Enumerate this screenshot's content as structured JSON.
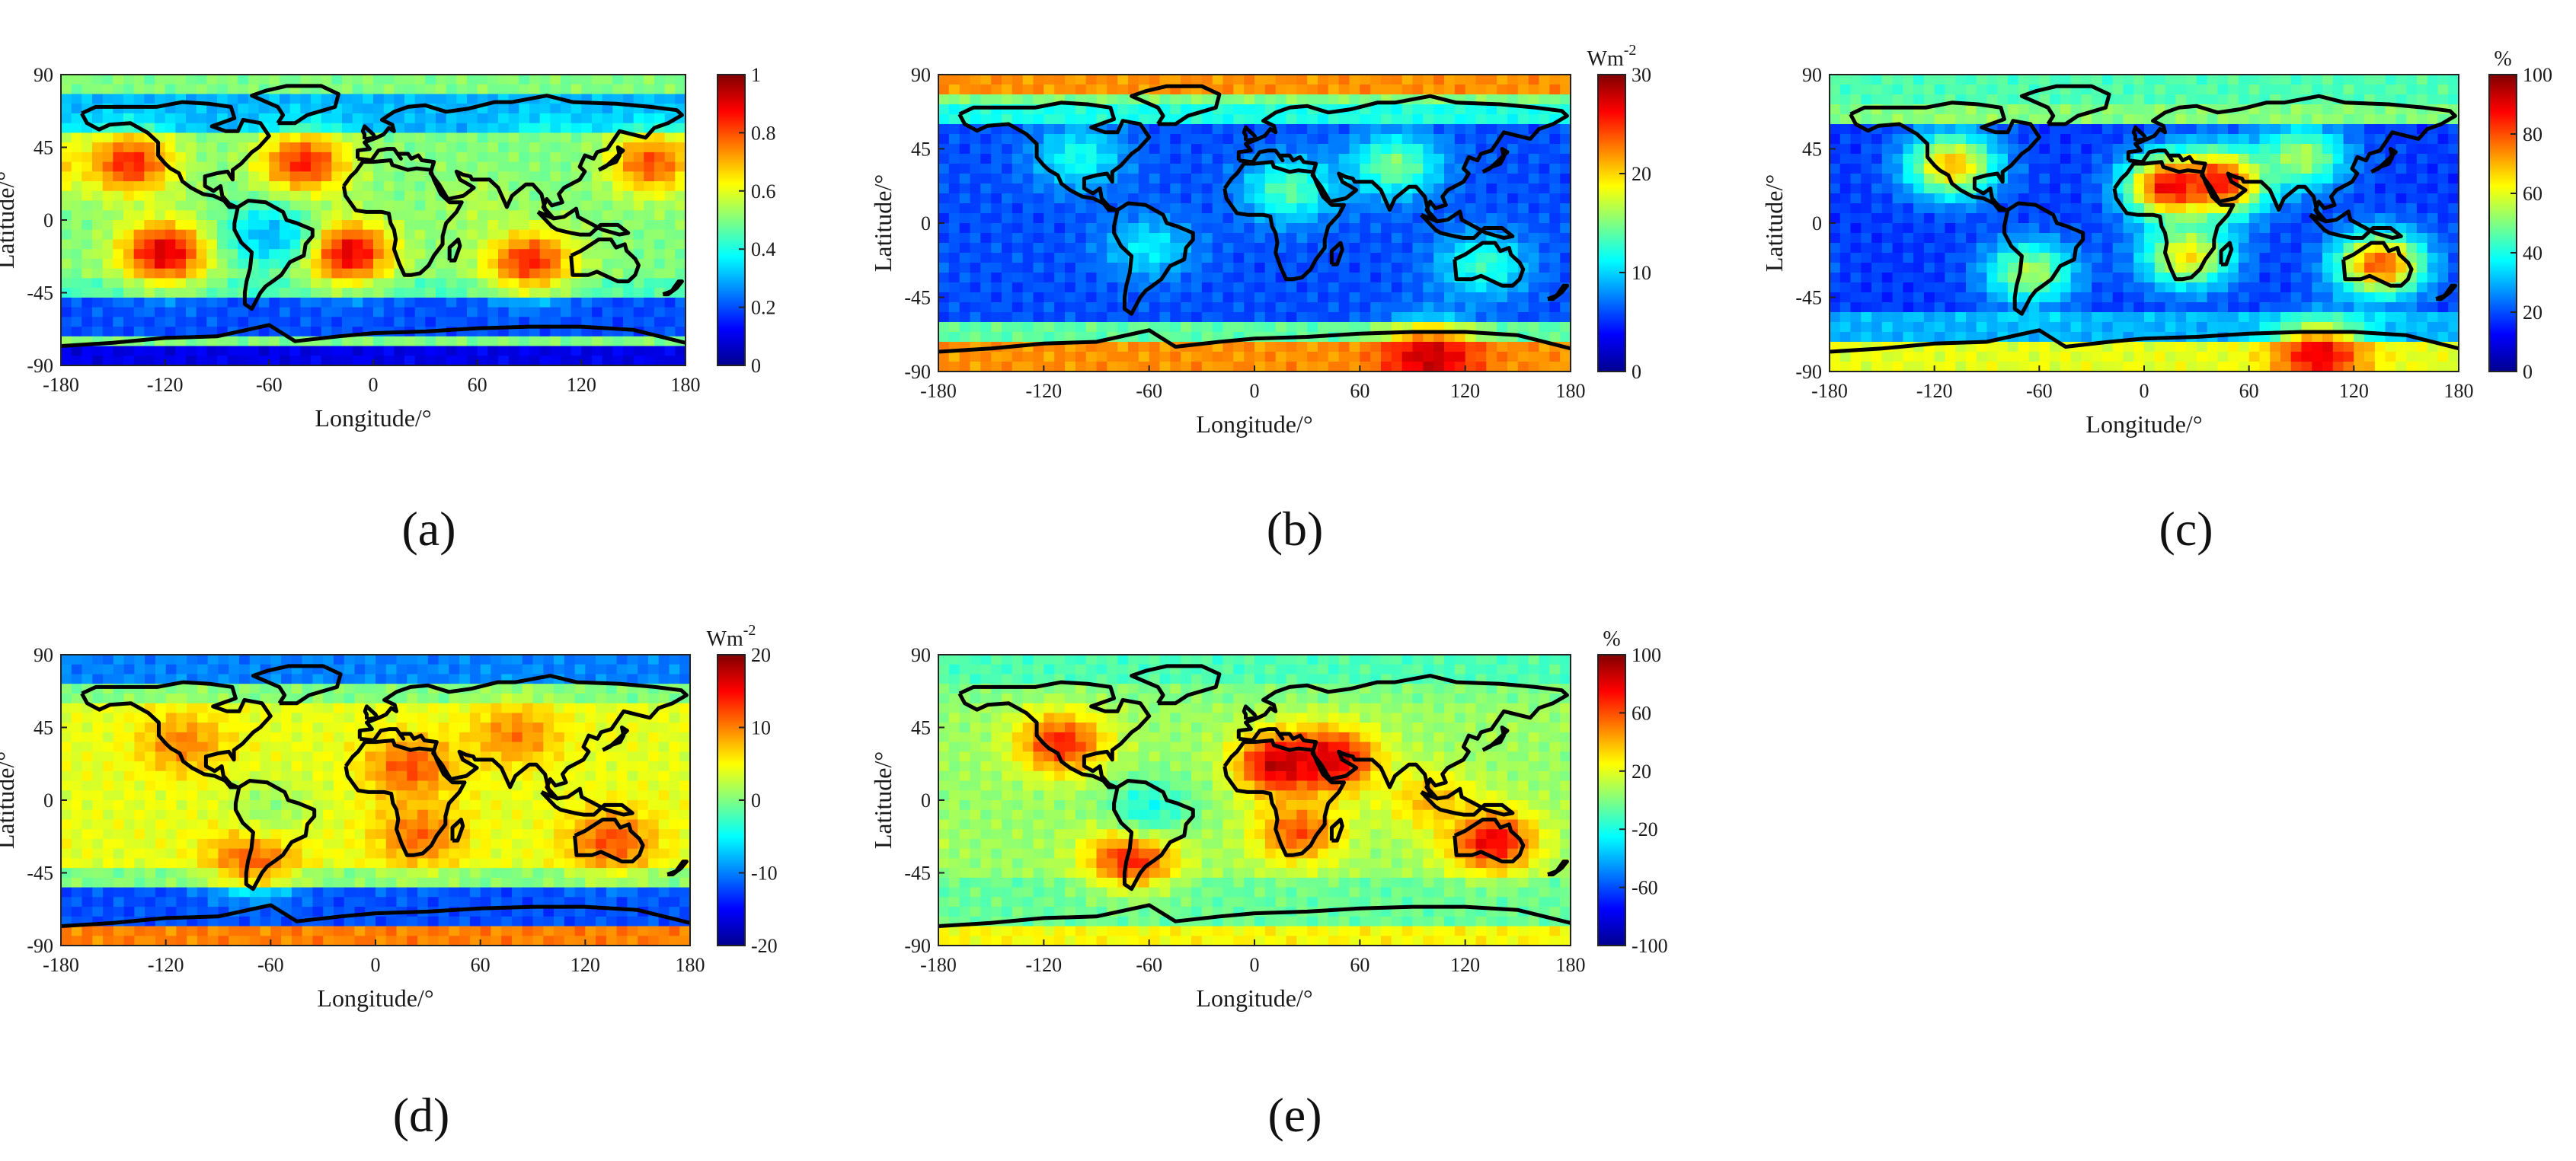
{
  "figure": {
    "caption": ""
  },
  "palette": {
    "jet": [
      "#00008f",
      "#0000ff",
      "#0080ff",
      "#00ffff",
      "#80ff80",
      "#ffff00",
      "#ff8000",
      "#ff0000",
      "#800000"
    ]
  },
  "chart_data": [
    {
      "type": "heatmap",
      "panel_label": "(a)",
      "title": "",
      "xlabel": "Longitude/°",
      "ylabel": "Latitude/°",
      "xlim": [
        -180,
        180
      ],
      "ylim": [
        -90,
        90
      ],
      "xticks": [
        -180,
        -120,
        -60,
        0,
        60,
        120,
        180
      ],
      "yticks": [
        -90,
        -45,
        0,
        45,
        90
      ],
      "colorbar": {
        "min": 0,
        "max": 1,
        "ticks": [
          0,
          0.2,
          0.4,
          0.6,
          0.8,
          1
        ],
        "tick_labels": [
          "0",
          "0.2",
          "0.4",
          "0.6",
          "0.8",
          "1"
        ],
        "unit": ""
      },
      "features": [
        {
          "kind": "band",
          "lat": [
            -90,
            -75
          ],
          "value": 0.1
        },
        {
          "kind": "band",
          "lat": [
            -70,
            -50
          ],
          "value": 0.2
        },
        {
          "kind": "band",
          "lat": [
            -50,
            -35
          ],
          "value": 0.45
        },
        {
          "kind": "band",
          "lat": [
            55,
            80
          ],
          "value": 0.3
        },
        {
          "kind": "blob",
          "lon": -120,
          "lat": -20,
          "value": 0.92
        },
        {
          "kind": "blob",
          "lon": -15,
          "lat": -20,
          "value": 0.92
        },
        {
          "kind": "blob",
          "lon": 90,
          "lat": -25,
          "value": 0.85
        },
        {
          "kind": "blob",
          "lon": -40,
          "lat": 35,
          "value": 0.85
        },
        {
          "kind": "blob",
          "lon": -140,
          "lat": 35,
          "value": 0.85
        },
        {
          "kind": "blob",
          "lon": 160,
          "lat": 35,
          "value": 0.8
        },
        {
          "kind": "blob",
          "lon": 60,
          "lat": 10,
          "value": 0.55
        },
        {
          "kind": "blob",
          "lon": -60,
          "lat": -10,
          "value": 0.3
        },
        {
          "kind": "blob",
          "lon": 100,
          "lat": 40,
          "value": 0.5
        }
      ]
    },
    {
      "type": "heatmap",
      "panel_label": "(b)",
      "title": "",
      "xlabel": "Longitude/°",
      "ylabel": "Latitude/°",
      "xlim": [
        -180,
        180
      ],
      "ylim": [
        -90,
        90
      ],
      "xticks": [
        -180,
        -120,
        -60,
        0,
        60,
        120,
        180
      ],
      "yticks": [
        -90,
        -45,
        0,
        45,
        90
      ],
      "colorbar": {
        "min": 0,
        "max": 30,
        "ticks": [
          0,
          10,
          20,
          30
        ],
        "tick_labels": [
          "0",
          "10",
          "20",
          "30"
        ],
        "unit": "Wm-2"
      },
      "features": [
        {
          "kind": "band",
          "lat": [
            -90,
            -72
          ],
          "value": 22
        },
        {
          "kind": "band",
          "lat": [
            -72,
            -60
          ],
          "value": 14
        },
        {
          "kind": "band",
          "lat": [
            -60,
            60
          ],
          "value": 6
        },
        {
          "kind": "band",
          "lat": [
            60,
            75
          ],
          "value": 12
        },
        {
          "kind": "band",
          "lat": [
            78,
            90
          ],
          "value": 22
        },
        {
          "kind": "blob",
          "lon": 100,
          "lat": -82,
          "value": 28
        },
        {
          "kind": "blob",
          "lon": 20,
          "lat": 20,
          "value": 14
        },
        {
          "kind": "blob",
          "lon": 80,
          "lat": 35,
          "value": 15
        },
        {
          "kind": "blob",
          "lon": -100,
          "lat": 40,
          "value": 12
        },
        {
          "kind": "blob",
          "lon": 130,
          "lat": -25,
          "value": 13
        },
        {
          "kind": "blob",
          "lon": -60,
          "lat": -15,
          "value": 11
        }
      ]
    },
    {
      "type": "heatmap",
      "panel_label": "(c)",
      "title": "",
      "xlabel": "Longitude/°",
      "ylabel": "Latitude/°",
      "xlim": [
        -180,
        180
      ],
      "ylim": [
        -90,
        90
      ],
      "xticks": [
        -180,
        -120,
        -60,
        0,
        60,
        120,
        180
      ],
      "yticks": [
        -90,
        -45,
        0,
        45,
        90
      ],
      "colorbar": {
        "min": 0,
        "max": 100,
        "ticks": [
          0,
          20,
          40,
          60,
          80,
          100
        ],
        "tick_labels": [
          "0",
          "20",
          "40",
          "60",
          "80",
          "100"
        ],
        "unit": "%"
      },
      "features": [
        {
          "kind": "band",
          "lat": [
            -90,
            -72
          ],
          "value": 60
        },
        {
          "kind": "band",
          "lat": [
            -72,
            -55
          ],
          "value": 30
        },
        {
          "kind": "band",
          "lat": [
            -55,
            60
          ],
          "value": 18
        },
        {
          "kind": "band",
          "lat": [
            75,
            90
          ],
          "value": 45
        },
        {
          "kind": "blob",
          "lon": 100,
          "lat": -80,
          "value": 90
        },
        {
          "kind": "blob",
          "lon": 15,
          "lat": 22,
          "value": 90
        },
        {
          "kind": "blob",
          "lon": 45,
          "lat": 25,
          "value": 88
        },
        {
          "kind": "blob",
          "lon": 135,
          "lat": -25,
          "value": 80
        },
        {
          "kind": "blob",
          "lon": -110,
          "lat": 35,
          "value": 70
        },
        {
          "kind": "blob",
          "lon": 25,
          "lat": -20,
          "value": 65
        },
        {
          "kind": "blob",
          "lon": -65,
          "lat": -30,
          "value": 55
        },
        {
          "kind": "blob",
          "lon": 90,
          "lat": 40,
          "value": 55
        }
      ]
    },
    {
      "type": "heatmap",
      "panel_label": "(d)",
      "title": "",
      "xlabel": "Longitude/°",
      "ylabel": "Latitude/°",
      "xlim": [
        -180,
        180
      ],
      "ylim": [
        -90,
        90
      ],
      "xticks": [
        -180,
        -120,
        -60,
        0,
        60,
        120,
        180
      ],
      "yticks": [
        -90,
        -45,
        0,
        45,
        90
      ],
      "colorbar": {
        "min": -20,
        "max": 20,
        "ticks": [
          -20,
          -10,
          0,
          10,
          20
        ],
        "tick_labels": [
          "-20",
          "-10",
          "0",
          "10",
          "20"
        ],
        "unit": "Wm-2"
      },
      "features": [
        {
          "kind": "band",
          "lat": [
            -90,
            -75
          ],
          "value": 10
        },
        {
          "kind": "band",
          "lat": [
            -75,
            -55
          ],
          "value": -12
        },
        {
          "kind": "band",
          "lat": [
            -55,
            -40
          ],
          "value": 0
        },
        {
          "kind": "band",
          "lat": [
            -40,
            60
          ],
          "value": 4
        },
        {
          "kind": "band",
          "lat": [
            70,
            90
          ],
          "value": -10
        },
        {
          "kind": "blob",
          "lon": 20,
          "lat": 20,
          "value": 12
        },
        {
          "kind": "blob",
          "lon": 135,
          "lat": -25,
          "value": 12
        },
        {
          "kind": "blob",
          "lon": -110,
          "lat": 35,
          "value": 10
        },
        {
          "kind": "blob",
          "lon": -70,
          "lat": -35,
          "value": 12
        },
        {
          "kind": "blob",
          "lon": 25,
          "lat": -22,
          "value": 11
        },
        {
          "kind": "blob",
          "lon": -60,
          "lat": -5,
          "value": 1
        },
        {
          "kind": "blob",
          "lon": 80,
          "lat": 40,
          "value": 10
        }
      ]
    },
    {
      "type": "heatmap",
      "panel_label": "(e)",
      "title": "",
      "xlabel": "Longitude/°",
      "ylabel": "Latitude/°",
      "xlim": [
        -180,
        180
      ],
      "ylim": [
        -90,
        90
      ],
      "xticks": [
        -180,
        -120,
        -60,
        0,
        60,
        120,
        180
      ],
      "yticks": [
        -90,
        -45,
        0,
        45,
        90
      ],
      "colorbar": {
        "min": -100,
        "max": 100,
        "ticks": [
          -100,
          -60,
          -20,
          20,
          60,
          100
        ],
        "tick_labels": [
          "-100",
          "-60",
          "-20",
          "20",
          "60",
          "100"
        ],
        "unit": "%"
      },
      "features": [
        {
          "kind": "band",
          "lat": [
            -90,
            -75
          ],
          "value": 25
        },
        {
          "kind": "band",
          "lat": [
            -75,
            -50
          ],
          "value": -5
        },
        {
          "kind": "band",
          "lat": [
            -50,
            60
          ],
          "value": 5
        },
        {
          "kind": "band",
          "lat": [
            70,
            90
          ],
          "value": -10
        },
        {
          "kind": "blob",
          "lon": 15,
          "lat": 22,
          "value": 90
        },
        {
          "kind": "blob",
          "lon": 45,
          "lat": 25,
          "value": 85
        },
        {
          "kind": "blob",
          "lon": 135,
          "lat": -25,
          "value": 80
        },
        {
          "kind": "blob",
          "lon": -110,
          "lat": 35,
          "value": 70
        },
        {
          "kind": "blob",
          "lon": -70,
          "lat": -35,
          "value": 75
        },
        {
          "kind": "blob",
          "lon": 25,
          "lat": -20,
          "value": 60
        },
        {
          "kind": "blob",
          "lon": 100,
          "lat": 0,
          "value": 40
        },
        {
          "kind": "blob",
          "lon": -60,
          "lat": -5,
          "value": -20
        }
      ]
    }
  ]
}
